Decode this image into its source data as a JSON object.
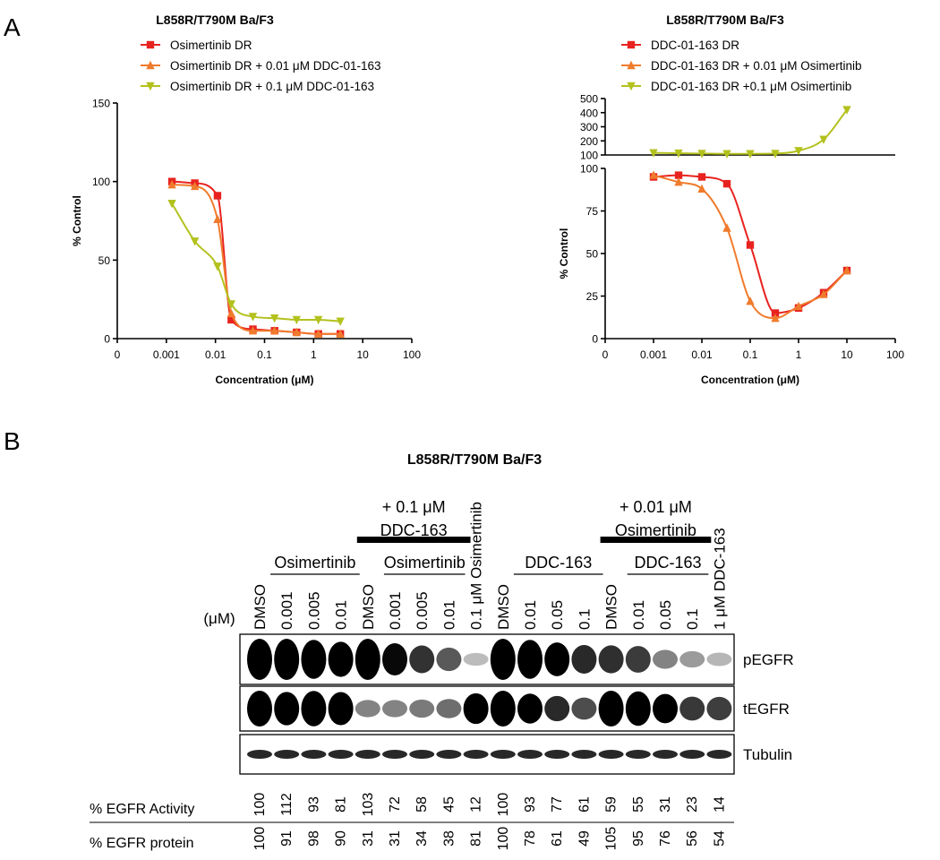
{
  "panel_labels": [
    "A",
    "B"
  ],
  "chart_data": [
    {
      "type": "line",
      "title": "L858R/T790M  Ba/F3",
      "xlabel": "Concentration (μM)",
      "ylabel": "% Control",
      "xscale": "log",
      "xlim": [
        0.0001,
        100
      ],
      "x_zero_label": "0",
      "xticks": [
        0.001,
        0.01,
        0.1,
        1,
        10,
        100
      ],
      "ylim": [
        0,
        150
      ],
      "yticks": [
        0,
        50,
        100,
        150
      ],
      "legend": "top-left",
      "x": [
        0.0013,
        0.0038,
        0.011,
        0.021,
        0.058,
        0.16,
        0.45,
        1.25,
        3.5
      ],
      "series": [
        {
          "name": "Osimertinib DR",
          "color": "#e8231f",
          "marker": "square",
          "values": [
            100,
            99,
            91,
            12,
            6,
            5,
            4,
            3,
            3
          ]
        },
        {
          "name": "Osimertinib DR + 0.01 μM DDC-01-163",
          "color": "#f07b2c",
          "marker": "triangle-up",
          "values": [
            98,
            97,
            76,
            16,
            5,
            5,
            4,
            3,
            3
          ]
        },
        {
          "name": "Osimertinib DR + 0.1 μM DDC-01-163",
          "color": "#b3c11d",
          "marker": "triangle-down",
          "values": [
            86,
            62,
            46,
            22,
            14,
            13,
            12,
            12,
            11
          ]
        }
      ]
    },
    {
      "type": "line",
      "title": "L858R/T790M  Ba/F3",
      "xlabel": "Concentration (μM)",
      "ylabel": "% Control",
      "xscale": "log",
      "xlim": [
        0.0001,
        100
      ],
      "x_zero_label": "0",
      "xticks": [
        0.001,
        0.01,
        0.1,
        1,
        10,
        100
      ],
      "ylim": [
        0,
        100
      ],
      "yticks": [
        0,
        25,
        50,
        75,
        100
      ],
      "ylim_upper": [
        100,
        500
      ],
      "yticks_upper": [
        100,
        200,
        300,
        400,
        500
      ],
      "legend": "top-left",
      "x": [
        0.001,
        0.0033,
        0.01,
        0.033,
        0.1,
        0.33,
        1,
        3.3,
        10
      ],
      "series": [
        {
          "name": "DDC-01-163 DR",
          "color": "#e8231f",
          "marker": "square",
          "values": [
            95,
            96,
            95,
            91,
            55,
            15,
            18,
            27,
            40
          ]
        },
        {
          "name": "DDC-01-163 DR + 0.01 μM Osimertinib",
          "color": "#f07b2c",
          "marker": "triangle-up",
          "values": [
            96,
            92,
            88,
            65,
            22,
            12,
            19,
            26,
            40
          ]
        },
        {
          "name": "DDC-01-163 DR +0.1 μM Osimertinib",
          "color": "#b3c11d",
          "marker": "triangle-down",
          "axis": "upper",
          "values": [
            115,
            112,
            110,
            108,
            108,
            110,
            130,
            210,
            420
          ]
        }
      ]
    }
  ],
  "blot": {
    "title": "L858R/T790M Ba/F3",
    "unit": "(μM)",
    "treatments": [
      [
        "+ 0.1 μM",
        "DDC-163"
      ],
      [
        "+ 0.01 μM",
        "Osimertinib"
      ]
    ],
    "groups": [
      "Osimertinib",
      "Osimertinib",
      "DDC-163",
      "DDC-163"
    ],
    "lanes": [
      "DMSO",
      "0.001",
      "0.005",
      "0.01",
      "DMSO",
      "0.001",
      "0.005",
      "0.01",
      "0.1 μM Osimertinib",
      "DMSO",
      "0.01",
      "0.05",
      "0.1",
      "DMSO",
      "0.01",
      "0.05",
      "0.1",
      "1 μM DDC-163"
    ],
    "rows": [
      "pEGFR",
      "tEGFR",
      "Tubulin"
    ],
    "quant": [
      {
        "name": "% EGFR Activity",
        "values": [
          100,
          112,
          93,
          81,
          103,
          72,
          58,
          45,
          12,
          100,
          93,
          77,
          61,
          59,
          55,
          31,
          23,
          14
        ]
      },
      {
        "name": "% EGFR protein",
        "values": [
          100,
          91,
          98,
          90,
          31,
          31,
          34,
          38,
          81,
          100,
          78,
          61,
          49,
          105,
          95,
          76,
          56,
          54
        ]
      }
    ]
  }
}
